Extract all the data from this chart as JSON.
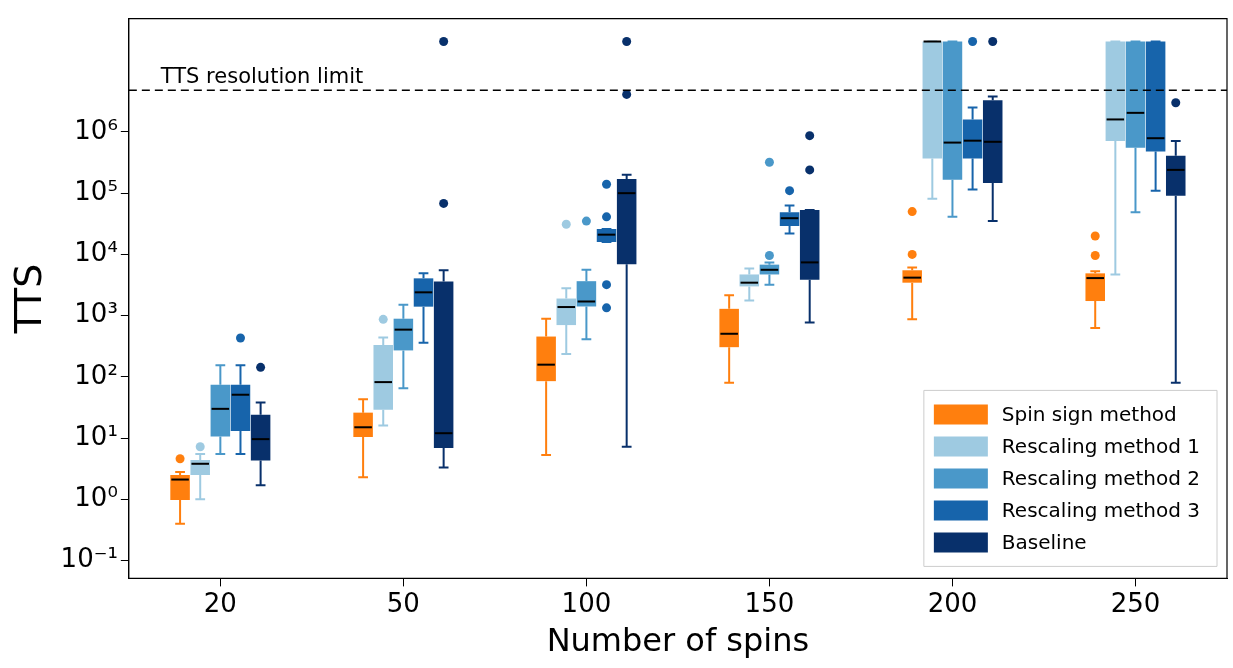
{
  "chart_data": {
    "type": "box",
    "xlabel": "Number of spins",
    "ylabel": "TTS",
    "categories": [
      "20",
      "50",
      "100",
      "150",
      "200",
      "250"
    ],
    "log": true,
    "ylim": [
      0.051,
      71000000
    ],
    "yticks": [
      {
        "value": 0.1,
        "label": "10⁻¹"
      },
      {
        "value": 1,
        "label": "10⁰"
      },
      {
        "value": 10,
        "label": "10¹"
      },
      {
        "value": 100,
        "label": "10²"
      },
      {
        "value": 1000,
        "label": "10³"
      },
      {
        "value": 10000,
        "label": "10⁴"
      },
      {
        "value": 100000,
        "label": "10⁵"
      },
      {
        "value": 1000000,
        "label": "10⁶"
      }
    ],
    "grid": false,
    "legend": "bottom right",
    "ref_lines": [
      {
        "axis": "y",
        "value": 4800000,
        "label": "TTS resolution limit",
        "color": "#000000",
        "line_style": "dashed"
      }
    ],
    "series": [
      {
        "name": "Spin sign method",
        "color": "#ff7f0e",
        "boxes": [
          {
            "low": 0.4,
            "q1": 0.97,
            "median": 2.1,
            "q3": 2.5,
            "high": 2.8,
            "outliers": [
              4.6
            ]
          },
          {
            "low": 2.3,
            "q1": 10.4,
            "median": 15,
            "q3": 26,
            "high": 43
          },
          {
            "low": 5.3,
            "q1": 85,
            "median": 158,
            "q3": 455,
            "high": 890
          },
          {
            "low": 80,
            "q1": 305,
            "median": 505,
            "q3": 1290,
            "high": 2150
          },
          {
            "low": 870,
            "q1": 3450,
            "median": 4170,
            "q3": 5500,
            "high": 6100,
            "outliers": [
              10000,
              50000
            ]
          },
          {
            "low": 630,
            "q1": 1730,
            "median": 4100,
            "q3": 4900,
            "high": 5300,
            "outliers": [
              9600,
              20000
            ]
          }
        ]
      },
      {
        "name": "Rescaling method 1",
        "color": "#9ecae1",
        "boxes": [
          {
            "low": 1.0,
            "q1": 2.5,
            "median": 3.8,
            "q3": 4.4,
            "high": 5.5,
            "outliers": [
              7.2
            ]
          },
          {
            "low": 16,
            "q1": 29,
            "median": 82,
            "q3": 330,
            "high": 440,
            "outliers": [
              870
            ]
          },
          {
            "low": 235,
            "q1": 700,
            "median": 1380,
            "q3": 1900,
            "high": 2800,
            "outliers": [
              31000
            ]
          },
          {
            "low": 1770,
            "q1": 3000,
            "median": 3450,
            "q3": 4700,
            "high": 5900
          },
          {
            "low": 81000,
            "q1": 370000,
            "median": 30000000,
            "q3": 30000000,
            "high": 30000000
          },
          {
            "low": 4700,
            "q1": 710000,
            "median": 1600000,
            "q3": 30000000,
            "high": 30000000
          }
        ]
      },
      {
        "name": "Rescaling method 2",
        "color": "#4a98c9",
        "boxes": [
          {
            "low": 5.5,
            "q1": 10.6,
            "median": 30,
            "q3": 74,
            "high": 155
          },
          {
            "low": 65,
            "q1": 270,
            "median": 590,
            "q3": 890,
            "high": 1500
          },
          {
            "low": 410,
            "q1": 1410,
            "median": 1700,
            "q3": 3650,
            "high": 5600,
            "outliers": [
              35000
            ]
          },
          {
            "low": 3200,
            "q1": 4700,
            "median": 5600,
            "q3": 6800,
            "high": 7400,
            "outliers": [
              9600,
              320000
            ]
          },
          {
            "low": 41000,
            "q1": 166000,
            "median": 670000,
            "q3": 30000000,
            "high": 30000000
          },
          {
            "low": 49000,
            "q1": 550000,
            "median": 2050000,
            "q3": 30000000,
            "high": 30000000
          }
        ]
      },
      {
        "name": "Rescaling method 3",
        "color": "#1764ab",
        "boxes": [
          {
            "low": 5.5,
            "q1": 13,
            "median": 51,
            "q3": 74,
            "high": 155,
            "outliers": [
              430
            ]
          },
          {
            "low": 360,
            "q1": 1400,
            "median": 2400,
            "q3": 4060,
            "high": 4900
          },
          {
            "low": 16000,
            "q1": 16000,
            "median": 21000,
            "q3": 26000,
            "high": 26000,
            "outliers": [
              1340,
              3200,
              41000,
              140000
            ]
          },
          {
            "low": 22000,
            "q1": 29000,
            "median": 39000,
            "q3": 49000,
            "high": 63000,
            "outliers": [
              110000
            ]
          },
          {
            "low": 115000,
            "q1": 370000,
            "median": 720000,
            "q3": 1600000,
            "high": 2500000,
            "outliers": [
              30000000
            ]
          },
          {
            "low": 110000,
            "q1": 480000,
            "median": 790000,
            "q3": 30000000,
            "high": 30000000
          }
        ]
      },
      {
        "name": "Baseline",
        "color": "#08306b",
        "boxes": [
          {
            "low": 1.7,
            "q1": 4.3,
            "median": 9.6,
            "q3": 24,
            "high": 38,
            "outliers": [
              143
            ]
          },
          {
            "low": 3.3,
            "q1": 6.9,
            "median": 12,
            "q3": 3600,
            "high": 5500,
            "outliers": [
              68000,
              30000000
            ]
          },
          {
            "low": 7.2,
            "q1": 6900,
            "median": 100000,
            "q3": 170000,
            "high": 200000,
            "outliers": [
              4100000,
              30000000
            ]
          },
          {
            "low": 770,
            "q1": 3870,
            "median": 7400,
            "q3": 53000,
            "high": 53000,
            "outliers": [
              240000,
              870000
            ]
          },
          {
            "low": 35000,
            "q1": 147000,
            "median": 690000,
            "q3": 3300000,
            "high": 3800000,
            "outliers": [
              30000000
            ]
          },
          {
            "low": 80,
            "q1": 91000,
            "median": 240000,
            "q3": 410000,
            "high": 710000,
            "outliers": [
              3000000
            ]
          }
        ]
      }
    ]
  }
}
